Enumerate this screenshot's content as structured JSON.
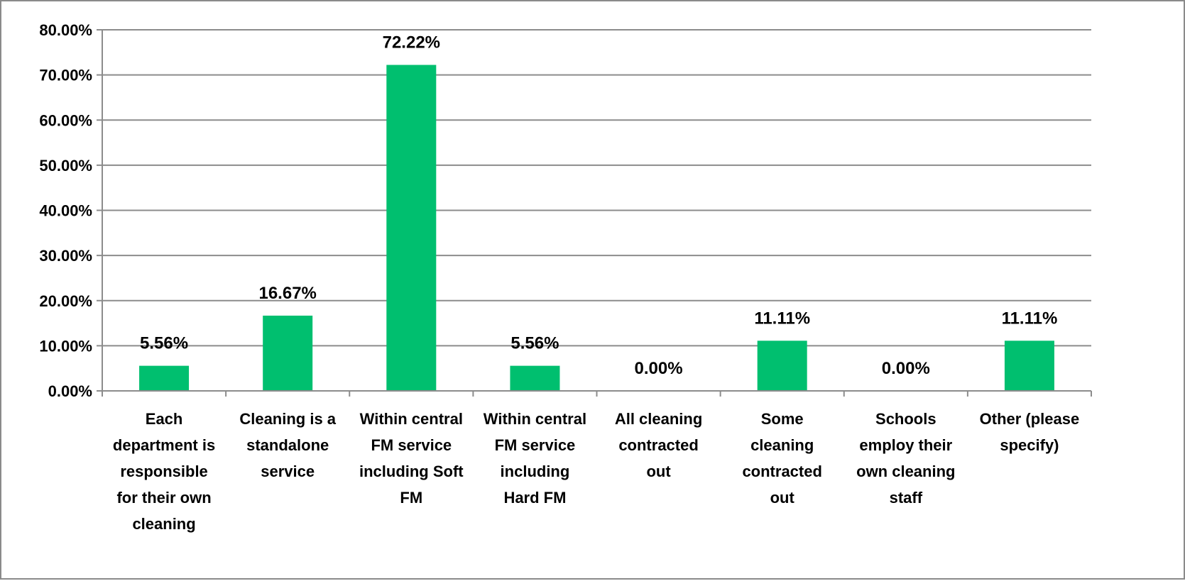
{
  "chart_data": {
    "type": "bar",
    "title": "",
    "xlabel": "",
    "ylabel": "",
    "ylim": [
      0,
      80
    ],
    "y_tick_step": 10,
    "y_tick_labels": [
      "0.00%",
      "10.00%",
      "20.00%",
      "30.00%",
      "40.00%",
      "50.00%",
      "60.00%",
      "70.00%",
      "80.00%"
    ],
    "grid": true,
    "legend": "none",
    "bar_color": "#00BF6F",
    "grid_color": "#8c8c8c",
    "categories": [
      [
        "Each",
        "department is",
        "responsible",
        "for their own",
        "cleaning"
      ],
      [
        "Cleaning is a",
        "standalone",
        "service"
      ],
      [
        "Within central",
        "FM service",
        "including Soft",
        "FM"
      ],
      [
        "Within central",
        "FM service",
        "including",
        "Hard FM"
      ],
      [
        "All cleaning",
        "contracted",
        "out"
      ],
      [
        "Some",
        "cleaning",
        "contracted",
        "out"
      ],
      [
        "Schools",
        "employ their",
        "own cleaning",
        "staff"
      ],
      [
        "Other (please",
        "specify)"
      ]
    ],
    "values": [
      5.56,
      16.67,
      72.22,
      5.56,
      0.0,
      11.11,
      0.0,
      11.11
    ],
    "data_labels": [
      "5.56%",
      "16.67%",
      "72.22%",
      "5.56%",
      "0.00%",
      "11.11%",
      "0.00%",
      "11.11%"
    ]
  }
}
